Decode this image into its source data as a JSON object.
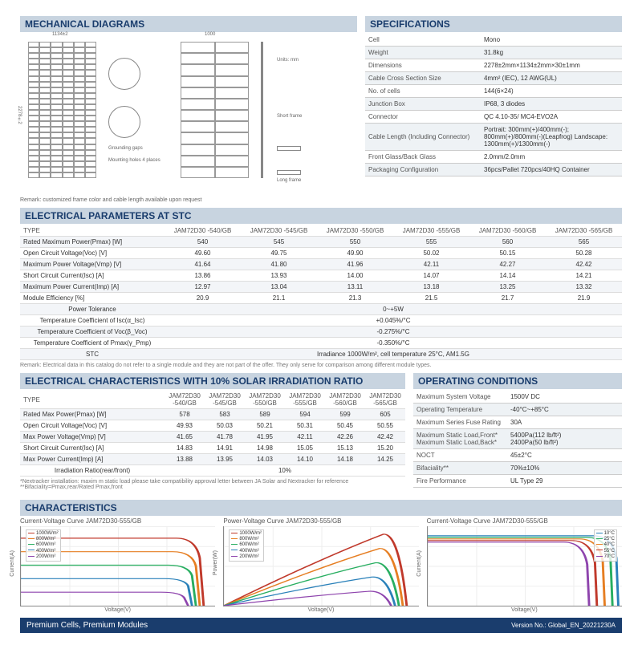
{
  "headers": {
    "mech": "MECHANICAL DIAGRAMS",
    "spec": "SPECIFICATIONS",
    "elec_stc": "ELECTRICAL PARAMETERS AT STC",
    "elec_10": "ELECTRICAL CHARACTERISTICS WITH 10% SOLAR IRRADIATION RATIO",
    "oper": "OPERATING CONDITIONS",
    "char": "CHARACTERISTICS"
  },
  "diag": {
    "w": "1134±2",
    "h": "2278±2",
    "side": "1000",
    "short_frame": "Short frame",
    "long_frame": "Long frame",
    "units": "Units: mm",
    "grounding": "Grounding gaps",
    "mounting": "Mounting holes 4 places",
    "note": "Remark: customized frame color and cable length available upon request"
  },
  "specs": [
    [
      "Cell",
      "Mono"
    ],
    [
      "Weight",
      "31.8kg"
    ],
    [
      "Dimensions",
      "2278±2mm×1134±2mm×30±1mm"
    ],
    [
      "Cable Cross Section Size",
      "4mm² (IEC), 12 AWG(UL)"
    ],
    [
      "No. of cells",
      "144(6×24)"
    ],
    [
      "Junction Box",
      "IP68, 3 diodes"
    ],
    [
      "Connector",
      "QC 4.10-35/ MC4-EVO2A"
    ],
    [
      "Cable Length (Including Connector)",
      "Portrait: 300mm(+)/400mm(-); 800mm(+)/800mm(-)(Leapfrog) Landscape: 1300mm(+)/1300mm(-)"
    ],
    [
      "Front Glass/Back Glass",
      "2.0mm/2.0mm"
    ],
    [
      "Packaging Configuration",
      "36pcs/Pallet 720pcs/40HQ Container"
    ]
  ],
  "elec_stc": {
    "head": [
      "TYPE",
      "JAM72D30 -540/GB",
      "JAM72D30 -545/GB",
      "JAM72D30 -550/GB",
      "JAM72D30 -555/GB",
      "JAM72D30 -560/GB",
      "JAM72D30 -565/GB"
    ],
    "rows": [
      [
        "Rated Maximum Power(Pmax) [W]",
        "540",
        "545",
        "550",
        "555",
        "560",
        "565"
      ],
      [
        "Open Circuit Voltage(Voc) [V]",
        "49.60",
        "49.75",
        "49.90",
        "50.02",
        "50.15",
        "50.28"
      ],
      [
        "Maximum Power Voltage(Vmp) [V]",
        "41.64",
        "41.80",
        "41.96",
        "42.11",
        "42.27",
        "42.42"
      ],
      [
        "Short Circuit Current(Isc) [A]",
        "13.86",
        "13.93",
        "14.00",
        "14.07",
        "14.14",
        "14.21"
      ],
      [
        "Maximum Power Current(Imp) [A]",
        "12.97",
        "13.04",
        "13.11",
        "13.18",
        "13.25",
        "13.32"
      ],
      [
        "Module Efficiency [%]",
        "20.9",
        "21.1",
        "21.3",
        "21.5",
        "21.7",
        "21.9"
      ]
    ],
    "span": [
      [
        "Power Tolerance",
        "0~+5W"
      ],
      [
        "Temperature Coefficient of Isc(α_Isc)",
        "+0.045%/°C"
      ],
      [
        "Temperature Coefficient of Voc(β_Voc)",
        "-0.275%/°C"
      ],
      [
        "Temperature Coefficient of Pmax(γ_Pmp)",
        "-0.350%/°C"
      ],
      [
        "STC",
        "Irradiance 1000W/m², cell temperature 25°C, AM1.5G"
      ]
    ],
    "note": "Remark: Electrical data in this catalog do not refer to a single module and they are not part of the offer. They only serve for comparison among different module types."
  },
  "elec_10": {
    "head": [
      "TYPE",
      "JAM72D30 -540/GB",
      "JAM72D30 -545/GB",
      "JAM72D30 -550/GB",
      "JAM72D30 -555/GB",
      "JAM72D30 -560/GB",
      "JAM72D30 -565/GB"
    ],
    "rows": [
      [
        "Rated Max Power(Pmax) [W]",
        "578",
        "583",
        "589",
        "594",
        "599",
        "605"
      ],
      [
        "Open Circuit Voltage(Voc) [V]",
        "49.93",
        "50.03",
        "50.21",
        "50.31",
        "50.45",
        "50.55"
      ],
      [
        "Max Power Voltage(Vmp) [V]",
        "41.65",
        "41.78",
        "41.95",
        "42.11",
        "42.26",
        "42.42"
      ],
      [
        "Short Circuit Current(Isc) [A]",
        "14.83",
        "14.91",
        "14.98",
        "15.05",
        "15.13",
        "15.20"
      ],
      [
        "Max Power Current(Imp) [A]",
        "13.88",
        "13.95",
        "14.03",
        "14.10",
        "14.18",
        "14.25"
      ]
    ],
    "span": [
      [
        "Irradiation Ratio(rear/front)",
        "10%"
      ]
    ],
    "note": "*Nextracker installation: maxim m static load please take compatibility approval letter between JA Solar and Nextracker for reference\n**Bifaciality=Pmax,rear/Rated Pmax,front"
  },
  "oper": [
    [
      "Maximum System Voltage",
      "1500V DC"
    ],
    [
      "Operating Temperature",
      "-40°C~+85°C"
    ],
    [
      "Maximum Series Fuse Rating",
      "30A"
    ],
    [
      "Maximum Static Load,Front*\nMaximum Static Load,Back*",
      "5400Pa(112 lb/ft²)\n2400Pa(50 lb/ft²)"
    ],
    [
      "NOCT",
      "45±2°C"
    ],
    [
      "Bifaciality**",
      "70%±10%"
    ],
    [
      "Fire Performance",
      "UL Type 29"
    ]
  ],
  "charts": {
    "axis_x": "Voltage(V)",
    "axis_y_current": "Current(A)",
    "axis_y_power": "Power(W)",
    "iv": {
      "title": "Current-Voltage Curve  JAM72D30-555/GB",
      "legend": [
        "1000W/m²",
        "800W/m²",
        "600W/m²",
        "400W/m²",
        "200W/m²"
      ],
      "colors": [
        "#c0392b",
        "#e67e22",
        "#27ae60",
        "#2980b9",
        "#8e44ad"
      ],
      "paths": [
        "M0,15 L80,15 Q90,15 92,40 L94,100",
        "M0,32 L78,32 Q88,32 90,50 L92,100",
        "M0,49 L76,49 Q86,49 88,62 L90,100",
        "M0,66 L74,66 Q84,66 86,75 L88,100",
        "M0,83 L72,83 Q82,83 84,90 L86,100"
      ]
    },
    "pv": {
      "title": "Power-Voltage Curve  JAM72D30-555/GB",
      "legend": [
        "1000W/m²",
        "800W/m²",
        "600W/m²",
        "400W/m²",
        "200W/m²"
      ],
      "colors": [
        "#c0392b",
        "#e67e22",
        "#27ae60",
        "#2980b9",
        "#8e44ad"
      ],
      "paths": [
        "M0,100 Q50,40 82,10 Q90,8 94,100",
        "M0,100 Q48,52 80,28 Q88,26 92,100",
        "M0,100 Q46,64 78,46 Q86,44 90,100",
        "M0,100 Q44,76 76,64 Q84,62 88,100",
        "M0,100 Q42,88 74,82 Q82,80 86,100"
      ]
    },
    "iv_temp": {
      "title": "Current-Voltage Curve  JAM72D30-555/GB",
      "legend": [
        "10°C",
        "25°C",
        "40°C",
        "55°C",
        "70°C"
      ],
      "colors": [
        "#2980b9",
        "#27ae60",
        "#e67e22",
        "#c0392b",
        "#8e44ad"
      ],
      "paths": [
        "M0,12 L85,12 Q95,12 97,40 L98,100",
        "M0,14 L82,14 Q92,14 94,42 L95,100",
        "M0,16 L78,16 Q88,16 90,44 L91,100",
        "M0,18 L74,18 Q84,18 86,46 L87,100",
        "M0,20 L70,20 Q80,20 82,48 L83,100"
      ]
    }
  },
  "footer": {
    "left": "Premium Cells, Premium Modules",
    "right": "Version No.: Global_EN_20221230A"
  }
}
